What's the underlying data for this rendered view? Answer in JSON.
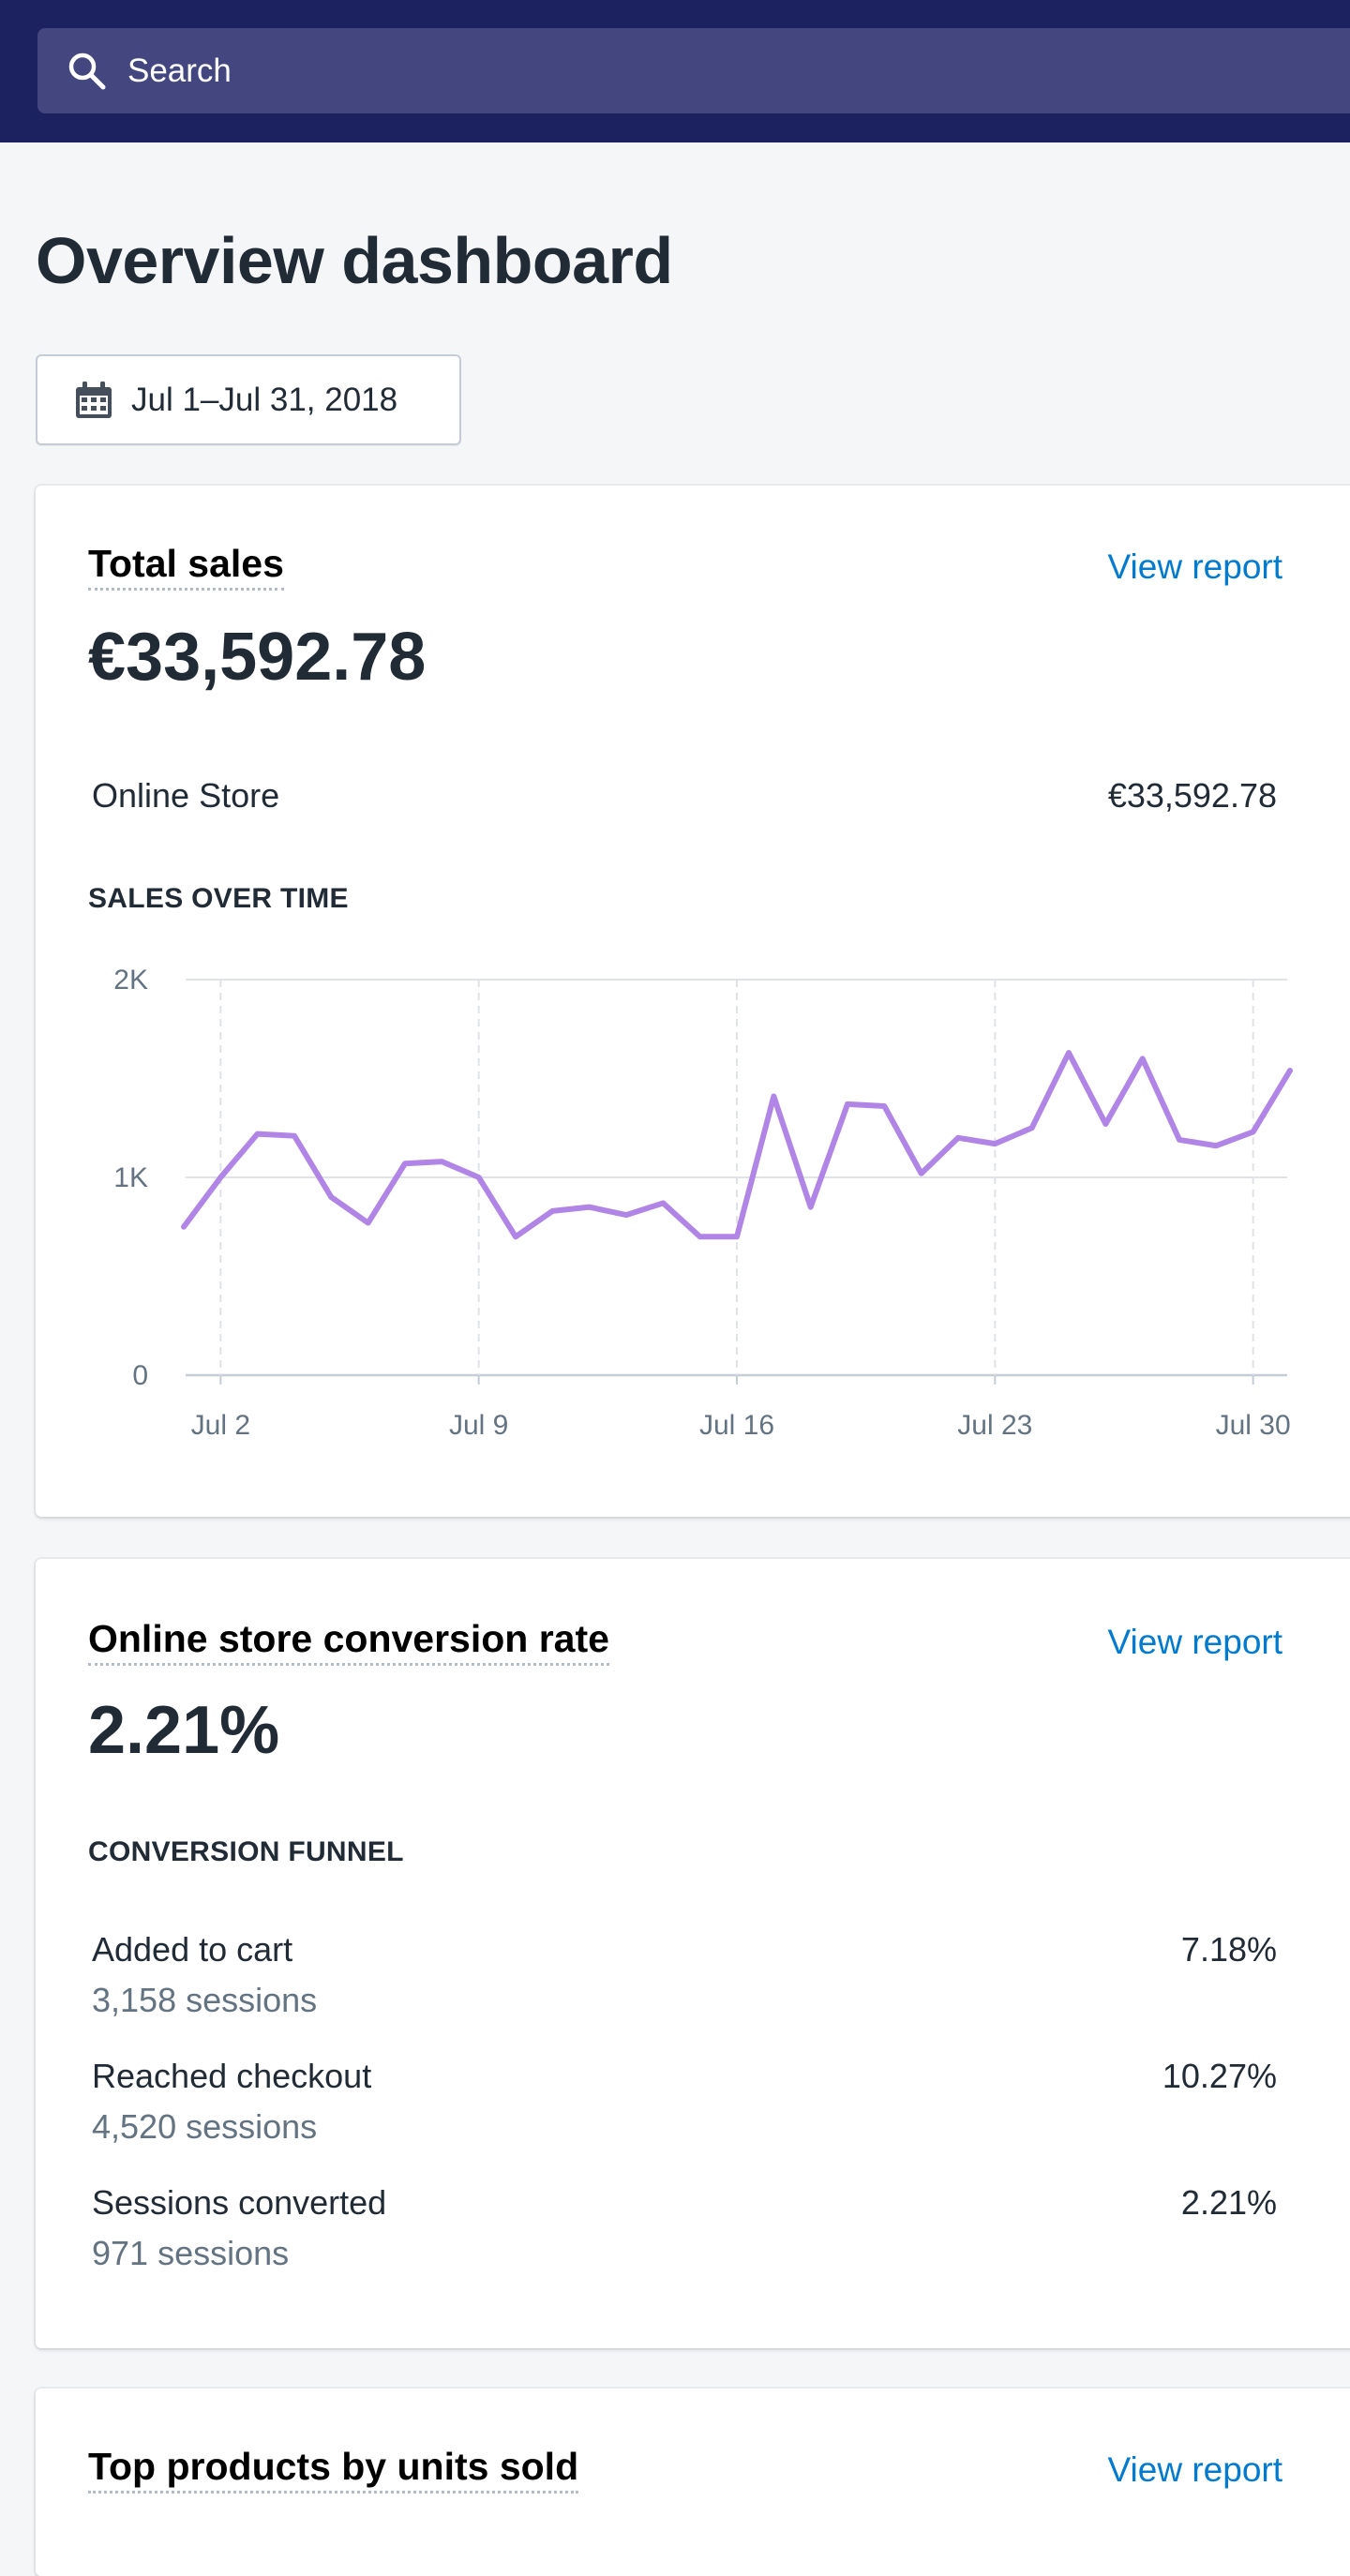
{
  "search": {
    "label": "Search"
  },
  "page": {
    "title": "Overview dashboard"
  },
  "date_range": {
    "label": "Jul 1–Jul 31, 2018"
  },
  "total_sales": {
    "title": "Total sales",
    "view_report": "View report",
    "value": "€33,592.78",
    "channel_label": "Online Store",
    "channel_value": "€33,592.78",
    "section_heading": "SALES OVER TIME"
  },
  "conversion": {
    "title": "Online store conversion rate",
    "view_report": "View report",
    "value": "2.21%",
    "section_heading": "CONVERSION FUNNEL",
    "rows": [
      {
        "label": "Added to cart",
        "sessions": "3,158 sessions",
        "rate": "7.18%"
      },
      {
        "label": "Reached checkout",
        "sessions": "4,520 sessions",
        "rate": "10.27%"
      },
      {
        "label": "Sessions converted",
        "sessions": "971 sessions",
        "rate": "2.21%"
      }
    ]
  },
  "top_products": {
    "title": "Top products by units sold",
    "view_report": "View report"
  },
  "colors": {
    "topbar": "#1c2260",
    "search_bg": "#43467f",
    "link": "#007ace",
    "series_line": "#b085e6"
  },
  "icons": {
    "search": "search-icon",
    "calendar": "calendar-icon"
  },
  "chart_data": {
    "type": "line",
    "title": "SALES OVER TIME",
    "xlabel": "",
    "ylabel": "",
    "x": [
      1,
      2,
      3,
      4,
      5,
      6,
      7,
      8,
      9,
      10,
      11,
      12,
      13,
      14,
      15,
      16,
      17,
      18,
      19,
      20,
      21,
      22,
      23,
      24,
      25,
      26,
      27,
      28,
      29,
      30,
      31
    ],
    "x_tick_values": [
      2,
      9,
      16,
      23,
      30
    ],
    "x_tick_labels": [
      "Jul 2",
      "Jul 9",
      "Jul 16",
      "Jul 23",
      "Jul 30"
    ],
    "y_ticks": [
      0,
      1000,
      2000
    ],
    "y_tick_labels": [
      "0",
      "1K",
      "2K"
    ],
    "ylim": [
      0,
      2000
    ],
    "grid": true,
    "series": [
      {
        "values": [
          750,
          1000,
          1220,
          1210,
          900,
          770,
          1070,
          1080,
          1000,
          700,
          830,
          850,
          810,
          870,
          700,
          700,
          1410,
          850,
          1370,
          1360,
          1020,
          1200,
          1170,
          1250,
          1630,
          1270,
          1600,
          1190,
          1160,
          1230,
          1540
        ]
      }
    ]
  }
}
